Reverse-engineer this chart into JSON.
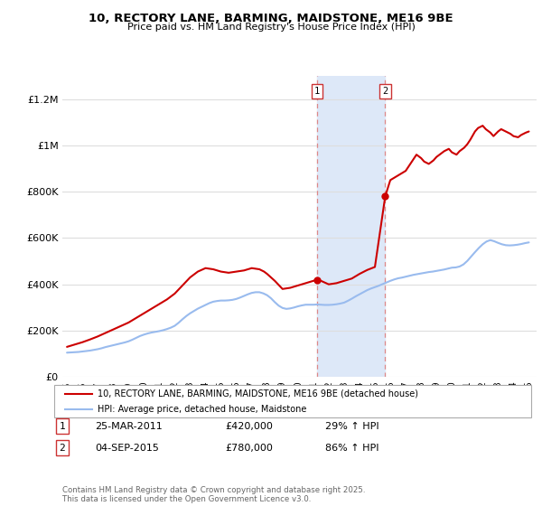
{
  "title_line1": "10, RECTORY LANE, BARMING, MAIDSTONE, ME16 9BE",
  "title_line2": "Price paid vs. HM Land Registry's House Price Index (HPI)",
  "ytick_values": [
    0,
    200000,
    400000,
    600000,
    800000,
    1000000,
    1200000
  ],
  "ytick_labels": [
    "£0",
    "£200K",
    "£400K",
    "£600K",
    "£800K",
    "£1M",
    "£1.2M"
  ],
  "ylim": [
    0,
    1300000
  ],
  "xlim_start": 1994.7,
  "xlim_end": 2025.5,
  "background_color": "#ffffff",
  "plot_bg_color": "#ffffff",
  "grid_color": "#dddddd",
  "red_line_color": "#cc0000",
  "blue_line_color": "#99bbee",
  "shade_color": "#dde8f8",
  "legend_label_red": "10, RECTORY LANE, BARMING, MAIDSTONE, ME16 9BE (detached house)",
  "legend_label_blue": "HPI: Average price, detached house, Maidstone",
  "transaction1_label": "1",
  "transaction1_date": "25-MAR-2011",
  "transaction1_price": "£420,000",
  "transaction1_hpi": "29% ↑ HPI",
  "transaction1_x": 2011.23,
  "transaction1_y": 420000,
  "transaction2_label": "2",
  "transaction2_date": "04-SEP-2015",
  "transaction2_price": "£780,000",
  "transaction2_hpi": "86% ↑ HPI",
  "transaction2_x": 2015.67,
  "transaction2_y": 780000,
  "shade_x_start": 2011.23,
  "shade_x_end": 2015.67,
  "footnote": "Contains HM Land Registry data © Crown copyright and database right 2025.\nThis data is licensed under the Open Government Licence v3.0.",
  "hpi_data_x": [
    1995.0,
    1995.25,
    1995.5,
    1995.75,
    1996.0,
    1996.25,
    1996.5,
    1996.75,
    1997.0,
    1997.25,
    1997.5,
    1997.75,
    1998.0,
    1998.25,
    1998.5,
    1998.75,
    1999.0,
    1999.25,
    1999.5,
    1999.75,
    2000.0,
    2000.25,
    2000.5,
    2000.75,
    2001.0,
    2001.25,
    2001.5,
    2001.75,
    2002.0,
    2002.25,
    2002.5,
    2002.75,
    2003.0,
    2003.25,
    2003.5,
    2003.75,
    2004.0,
    2004.25,
    2004.5,
    2004.75,
    2005.0,
    2005.25,
    2005.5,
    2005.75,
    2006.0,
    2006.25,
    2006.5,
    2006.75,
    2007.0,
    2007.25,
    2007.5,
    2007.75,
    2008.0,
    2008.25,
    2008.5,
    2008.75,
    2009.0,
    2009.25,
    2009.5,
    2009.75,
    2010.0,
    2010.25,
    2010.5,
    2010.75,
    2011.0,
    2011.25,
    2011.5,
    2011.75,
    2012.0,
    2012.25,
    2012.5,
    2012.75,
    2013.0,
    2013.25,
    2013.5,
    2013.75,
    2014.0,
    2014.25,
    2014.5,
    2014.75,
    2015.0,
    2015.25,
    2015.5,
    2015.75,
    2016.0,
    2016.25,
    2016.5,
    2016.75,
    2017.0,
    2017.25,
    2017.5,
    2017.75,
    2018.0,
    2018.25,
    2018.5,
    2018.75,
    2019.0,
    2019.25,
    2019.5,
    2019.75,
    2020.0,
    2020.25,
    2020.5,
    2020.75,
    2021.0,
    2021.25,
    2021.5,
    2021.75,
    2022.0,
    2022.25,
    2022.5,
    2022.75,
    2023.0,
    2023.25,
    2023.5,
    2023.75,
    2024.0,
    2024.25,
    2024.5,
    2024.75,
    2025.0
  ],
  "hpi_data_y": [
    105000,
    106000,
    107000,
    108000,
    110000,
    112000,
    114000,
    117000,
    120000,
    124000,
    129000,
    133000,
    137000,
    141000,
    145000,
    149000,
    154000,
    161000,
    169000,
    177000,
    183000,
    188000,
    192000,
    195000,
    198000,
    202000,
    207000,
    213000,
    221000,
    234000,
    249000,
    263000,
    275000,
    285000,
    295000,
    303000,
    311000,
    319000,
    325000,
    328000,
    330000,
    330000,
    331000,
    333000,
    337000,
    343000,
    350000,
    357000,
    363000,
    366000,
    366000,
    361000,
    353000,
    340000,
    323000,
    308000,
    298000,
    294000,
    296000,
    300000,
    305000,
    309000,
    312000,
    312000,
    312000,
    313000,
    312000,
    311000,
    311000,
    312000,
    314000,
    317000,
    321000,
    329000,
    338000,
    348000,
    357000,
    366000,
    375000,
    382000,
    388000,
    394000,
    401000,
    408000,
    415000,
    421000,
    426000,
    429000,
    433000,
    437000,
    441000,
    444000,
    447000,
    450000,
    453000,
    455000,
    458000,
    461000,
    464000,
    468000,
    472000,
    473000,
    477000,
    486000,
    501000,
    520000,
    539000,
    557000,
    573000,
    585000,
    591000,
    586000,
    579000,
    573000,
    569000,
    568000,
    569000,
    571000,
    574000,
    578000,
    581000
  ],
  "price_data_x": [
    1995.0,
    1995.5,
    1996.0,
    1996.5,
    1997.0,
    1997.5,
    1998.0,
    1998.5,
    1999.0,
    1999.5,
    2000.0,
    2000.5,
    2001.0,
    2001.5,
    2002.0,
    2002.5,
    2003.0,
    2003.5,
    2004.0,
    2004.5,
    2005.0,
    2005.5,
    2006.0,
    2006.5,
    2007.0,
    2007.5,
    2007.8,
    2008.0,
    2008.5,
    2009.0,
    2009.5,
    2010.0,
    2010.5,
    2011.0,
    2011.23,
    2011.5,
    2012.0,
    2012.5,
    2013.0,
    2013.5,
    2014.0,
    2014.5,
    2015.0,
    2015.67,
    2016.0,
    2016.5,
    2017.0,
    2017.3,
    2017.5,
    2017.7,
    2018.0,
    2018.2,
    2018.5,
    2018.8,
    2019.0,
    2019.3,
    2019.5,
    2019.8,
    2020.0,
    2020.3,
    2020.5,
    2020.8,
    2021.0,
    2021.2,
    2021.5,
    2021.7,
    2022.0,
    2022.2,
    2022.5,
    2022.7,
    2023.0,
    2023.2,
    2023.5,
    2023.8,
    2024.0,
    2024.3,
    2024.5,
    2024.8,
    2025.0
  ],
  "price_data_y": [
    130000,
    140000,
    150000,
    162000,
    175000,
    190000,
    205000,
    220000,
    235000,
    255000,
    275000,
    295000,
    315000,
    335000,
    360000,
    395000,
    430000,
    455000,
    470000,
    465000,
    455000,
    450000,
    455000,
    460000,
    470000,
    465000,
    455000,
    445000,
    415000,
    380000,
    385000,
    395000,
    405000,
    415000,
    420000,
    415000,
    400000,
    405000,
    415000,
    425000,
    445000,
    462000,
    475000,
    780000,
    850000,
    870000,
    890000,
    920000,
    940000,
    960000,
    945000,
    930000,
    920000,
    935000,
    950000,
    965000,
    975000,
    985000,
    970000,
    960000,
    975000,
    990000,
    1005000,
    1025000,
    1060000,
    1075000,
    1085000,
    1070000,
    1055000,
    1040000,
    1060000,
    1070000,
    1060000,
    1050000,
    1040000,
    1035000,
    1045000,
    1055000,
    1060000
  ]
}
